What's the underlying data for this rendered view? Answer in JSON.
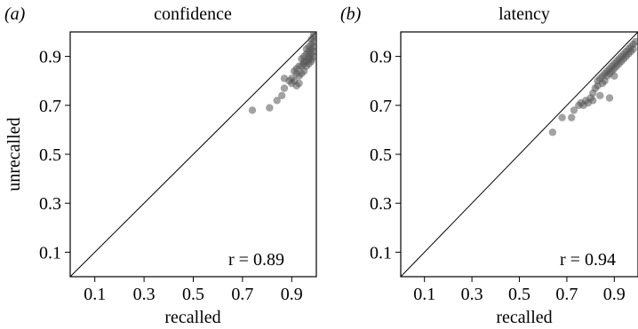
{
  "chart_data": [
    {
      "type": "scatter",
      "panel_label": "(a)",
      "title": "confidence",
      "xlabel": "recalled",
      "ylabel": "unrecalled",
      "xlim": [
        0.0,
        1.0
      ],
      "ylim": [
        0.0,
        1.0
      ],
      "xticks": [
        "0.1",
        "0.3",
        "0.5",
        "0.7",
        "0.9"
      ],
      "yticks": [
        "0.1",
        "0.3",
        "0.5",
        "0.7",
        "0.9"
      ],
      "reference_line": "y = x",
      "annotation": "r = 0.89",
      "grid": false,
      "points": [
        [
          0.74,
          0.68
        ],
        [
          0.81,
          0.69
        ],
        [
          0.84,
          0.72
        ],
        [
          0.86,
          0.74
        ],
        [
          0.87,
          0.77
        ],
        [
          0.87,
          0.81
        ],
        [
          0.89,
          0.8
        ],
        [
          0.9,
          0.79
        ],
        [
          0.9,
          0.81
        ],
        [
          0.91,
          0.8
        ],
        [
          0.92,
          0.78
        ],
        [
          0.93,
          0.79
        ],
        [
          0.93,
          0.82
        ],
        [
          0.91,
          0.84
        ],
        [
          0.92,
          0.85
        ],
        [
          0.94,
          0.83
        ],
        [
          0.94,
          0.86
        ],
        [
          0.95,
          0.84
        ],
        [
          0.95,
          0.87
        ],
        [
          0.96,
          0.86
        ],
        [
          0.96,
          0.88
        ],
        [
          0.97,
          0.87
        ],
        [
          0.97,
          0.9
        ],
        [
          0.98,
          0.89
        ],
        [
          0.98,
          0.91
        ],
        [
          0.99,
          0.9
        ],
        [
          0.99,
          0.92
        ],
        [
          0.99,
          0.94
        ],
        [
          0.98,
          0.93
        ],
        [
          0.97,
          0.92
        ],
        [
          0.96,
          0.91
        ],
        [
          0.99,
          0.96
        ],
        [
          0.99,
          0.98
        ],
        [
          0.98,
          0.95
        ],
        [
          0.97,
          0.94
        ],
        [
          0.95,
          0.9
        ],
        [
          0.94,
          0.89
        ],
        [
          0.96,
          0.93
        ],
        [
          0.98,
          0.97
        ],
        [
          0.99,
          0.99
        ],
        [
          0.92,
          0.83
        ],
        [
          0.93,
          0.86
        ],
        [
          0.95,
          0.88
        ],
        [
          0.97,
          0.89
        ],
        [
          0.98,
          0.88
        ]
      ]
    },
    {
      "type": "scatter",
      "panel_label": "(b)",
      "title": "latency",
      "xlabel": "recalled",
      "ylabel": "",
      "xlim": [
        0.0,
        1.0
      ],
      "ylim": [
        0.0,
        1.0
      ],
      "xticks": [
        "0.1",
        "0.3",
        "0.5",
        "0.7",
        "0.9"
      ],
      "yticks": [
        "0.1",
        "0.3",
        "0.5",
        "0.7",
        "0.9"
      ],
      "reference_line": "y = x",
      "annotation": "r = 0.94",
      "grid": false,
      "points": [
        [
          0.64,
          0.59
        ],
        [
          0.68,
          0.65
        ],
        [
          0.72,
          0.65
        ],
        [
          0.73,
          0.68
        ],
        [
          0.75,
          0.7
        ],
        [
          0.76,
          0.71
        ],
        [
          0.77,
          0.7
        ],
        [
          0.78,
          0.72
        ],
        [
          0.79,
          0.71
        ],
        [
          0.8,
          0.73
        ],
        [
          0.81,
          0.72
        ],
        [
          0.81,
          0.75
        ],
        [
          0.82,
          0.77
        ],
        [
          0.83,
          0.78
        ],
        [
          0.83,
          0.8
        ],
        [
          0.84,
          0.81
        ],
        [
          0.85,
          0.79
        ],
        [
          0.85,
          0.82
        ],
        [
          0.86,
          0.8
        ],
        [
          0.86,
          0.83
        ],
        [
          0.87,
          0.82
        ],
        [
          0.87,
          0.84
        ],
        [
          0.88,
          0.83
        ],
        [
          0.88,
          0.85
        ],
        [
          0.89,
          0.84
        ],
        [
          0.89,
          0.86
        ],
        [
          0.9,
          0.85
        ],
        [
          0.9,
          0.87
        ],
        [
          0.91,
          0.86
        ],
        [
          0.91,
          0.88
        ],
        [
          0.92,
          0.87
        ],
        [
          0.92,
          0.89
        ],
        [
          0.93,
          0.88
        ],
        [
          0.93,
          0.9
        ],
        [
          0.94,
          0.89
        ],
        [
          0.94,
          0.91
        ],
        [
          0.95,
          0.9
        ],
        [
          0.95,
          0.92
        ],
        [
          0.96,
          0.91
        ],
        [
          0.96,
          0.93
        ],
        [
          0.97,
          0.92
        ],
        [
          0.97,
          0.94
        ],
        [
          0.98,
          0.93
        ],
        [
          0.98,
          0.95
        ],
        [
          0.99,
          0.96
        ],
        [
          0.84,
          0.74
        ],
        [
          0.88,
          0.73
        ],
        [
          0.9,
          0.82
        ]
      ]
    }
  ]
}
